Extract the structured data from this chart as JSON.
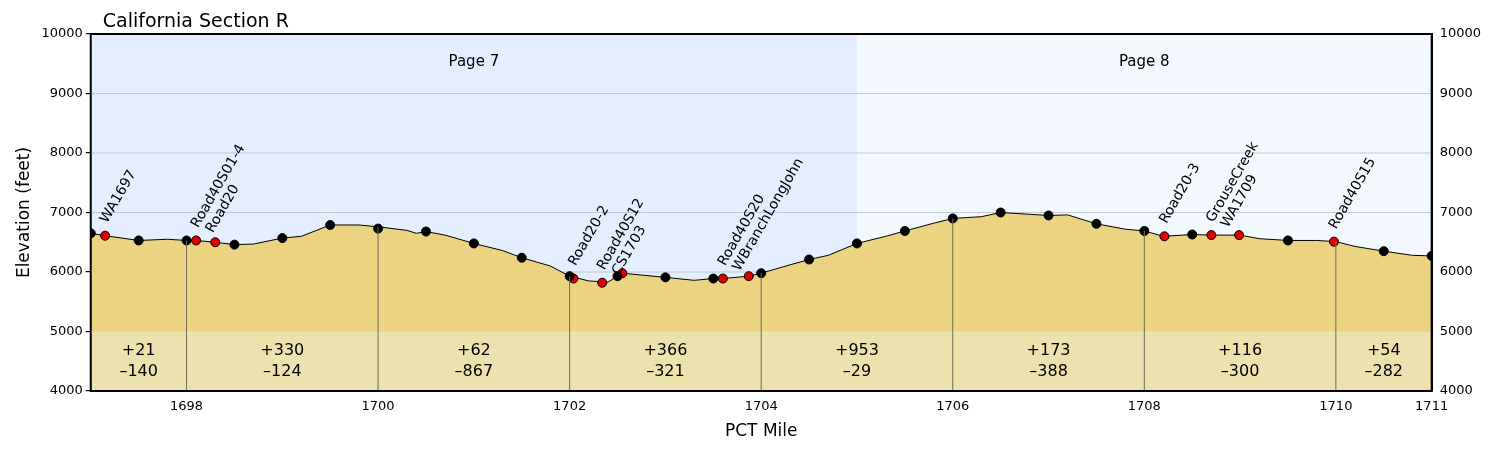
{
  "chart_data": {
    "type": "area",
    "title": "California Section R",
    "xlabel": "PCT Mile",
    "ylabel": "Elevation (feet)",
    "xlim": [
      1697,
      1711
    ],
    "xticks": [
      1698,
      1700,
      1702,
      1704,
      1706,
      1708,
      1710,
      1711
    ],
    "ylim": [
      4000,
      10000
    ],
    "yticks": [
      4000,
      5000,
      6000,
      7000,
      8000,
      9000,
      10000
    ],
    "y2lim": [
      4000,
      10000
    ],
    "y2ticks": [
      4000,
      5000,
      6000,
      7000,
      8000,
      9000,
      10000
    ],
    "grid": "y",
    "legend": false,
    "series": [
      {
        "type": "area",
        "color": "#ebd382",
        "x": [
          1697.0,
          1697.15,
          1697.5,
          1697.8,
          1698.0,
          1698.1,
          1698.3,
          1698.5,
          1698.7,
          1699.0,
          1699.2,
          1699.5,
          1699.8,
          1700.0,
          1700.3,
          1700.4,
          1700.5,
          1700.7,
          1701.0,
          1701.3,
          1701.5,
          1701.8,
          1702.0,
          1702.2,
          1702.4,
          1702.5,
          1702.55,
          1703.0,
          1703.3,
          1703.5,
          1703.6,
          1703.87,
          1704.0,
          1704.3,
          1704.5,
          1704.7,
          1705.0,
          1705.3,
          1705.5,
          1705.8,
          1706.0,
          1706.3,
          1706.5,
          1706.8,
          1707.0,
          1707.2,
          1707.5,
          1707.8,
          1708.0,
          1708.2,
          1708.5,
          1708.7,
          1709.0,
          1709.2,
          1709.5,
          1709.8,
          1710.0,
          1710.2,
          1710.5,
          1710.8,
          1711.0
        ],
        "values": [
          6650,
          6610,
          6530,
          6550,
          6530,
          6530,
          6500,
          6460,
          6470,
          6570,
          6600,
          6790,
          6790,
          6760,
          6700,
          6650,
          6680,
          6620,
          6480,
          6360,
          6240,
          6100,
          5930,
          5850,
          5830,
          5930,
          5980,
          5910,
          5860,
          5890,
          5890,
          5930,
          5980,
          6120,
          6210,
          6280,
          6480,
          6600,
          6690,
          6820,
          6900,
          6930,
          7000,
          6970,
          6950,
          6960,
          6810,
          6720,
          6690,
          6600,
          6630,
          6620,
          6620,
          6560,
          6530,
          6530,
          6510,
          6430,
          6350,
          6280,
          6270
        ]
      },
      {
        "type": "scatter",
        "color": "#000000",
        "marker": "circle",
        "x": [
          1697.0,
          1697.5,
          1698.0,
          1698.5,
          1699.0,
          1699.5,
          1700.0,
          1700.5,
          1701.0,
          1701.5,
          1702.0,
          1702.5,
          1703.0,
          1703.5,
          1704.0,
          1704.5,
          1705.0,
          1705.5,
          1706.0,
          1706.5,
          1707.0,
          1707.5,
          1708.0,
          1708.5,
          1709.5,
          1710.5,
          1711.0
        ],
        "values": [
          6650,
          6530,
          6530,
          6460,
          6570,
          6790,
          6730,
          6680,
          6480,
          6240,
          5930,
          5930,
          5910,
          5890,
          5980,
          6210,
          6480,
          6690,
          6900,
          7000,
          6950,
          6810,
          6690,
          6630,
          6530,
          6350,
          6270
        ]
      },
      {
        "type": "scatter",
        "color": "#e00000",
        "marker": "circle",
        "x": [
          1697.15,
          1698.1,
          1698.3,
          1702.04,
          1702.34,
          1702.55,
          1703.6,
          1703.87,
          1708.21,
          1708.7,
          1708.99,
          1709.98
        ],
        "values": [
          6610,
          6530,
          6500,
          5890,
          5820,
          5980,
          5890,
          5930,
          6600,
          6620,
          6620,
          6510
        ],
        "value_labels": [
          "WA1697",
          "Road40S01-4\nRoad20",
          null,
          "Road20-2",
          "Road40S12\nCS1703",
          null,
          "Road40S20\nWBranchLongJohn",
          null,
          "Road20-3",
          "GrouseCreek\nWA1709",
          null,
          "Road40S15"
        ]
      }
    ],
    "bands": [
      {
        "axis": "x",
        "from": 1697,
        "to": 1705,
        "label": "Page 7",
        "color": "#e4eefe"
      },
      {
        "axis": "x",
        "from": 1705,
        "to": 1711,
        "label": "Page 8",
        "color": "#f3f7fe"
      },
      {
        "axis": "y",
        "from": 4000,
        "to": 5000,
        "color": "#ede1ae"
      }
    ],
    "ref_lines": [
      {
        "axis": "x",
        "value": 1698,
        "color": "#6b6b5a"
      },
      {
        "axis": "x",
        "value": 1700,
        "color": "#6b6b5a"
      },
      {
        "axis": "x",
        "value": 1702,
        "color": "#6b6b5a"
      },
      {
        "axis": "x",
        "value": 1704,
        "color": "#6b6b5a"
      },
      {
        "axis": "x",
        "value": 1706,
        "color": "#6b6b5a"
      },
      {
        "axis": "x",
        "value": 1708,
        "color": "#6b6b5a"
      },
      {
        "axis": "x",
        "value": 1710,
        "color": "#6b6b5a"
      }
    ],
    "annotations": [
      "+21\n–140",
      "+330\n–124",
      "+62\n–867",
      "+366\n–321",
      "+953\n–29",
      "+173\n–388",
      "+116\n–300",
      "+54\n–282"
    ]
  }
}
